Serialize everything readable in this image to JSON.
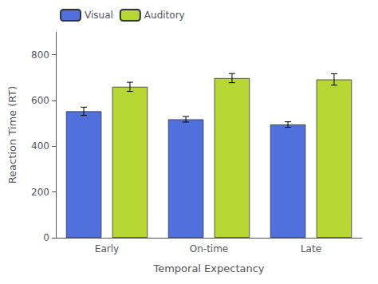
{
  "chart_data": {
    "type": "bar",
    "categories": [
      "Early",
      "On-time",
      "Late"
    ],
    "series": [
      {
        "name": "Visual",
        "values": [
          553,
          518,
          495
        ],
        "errors": [
          18,
          12,
          12
        ]
      },
      {
        "name": "Auditory",
        "values": [
          660,
          698,
          692
        ],
        "errors": [
          20,
          20,
          25
        ]
      }
    ],
    "xlabel": "Temporal Expectancy",
    "ylabel": "Reaction Time (RT)",
    "ylim": [
      0,
      900
    ],
    "yticks": [
      0,
      200,
      400,
      600,
      800
    ],
    "legend": "upper left",
    "grid": false
  }
}
